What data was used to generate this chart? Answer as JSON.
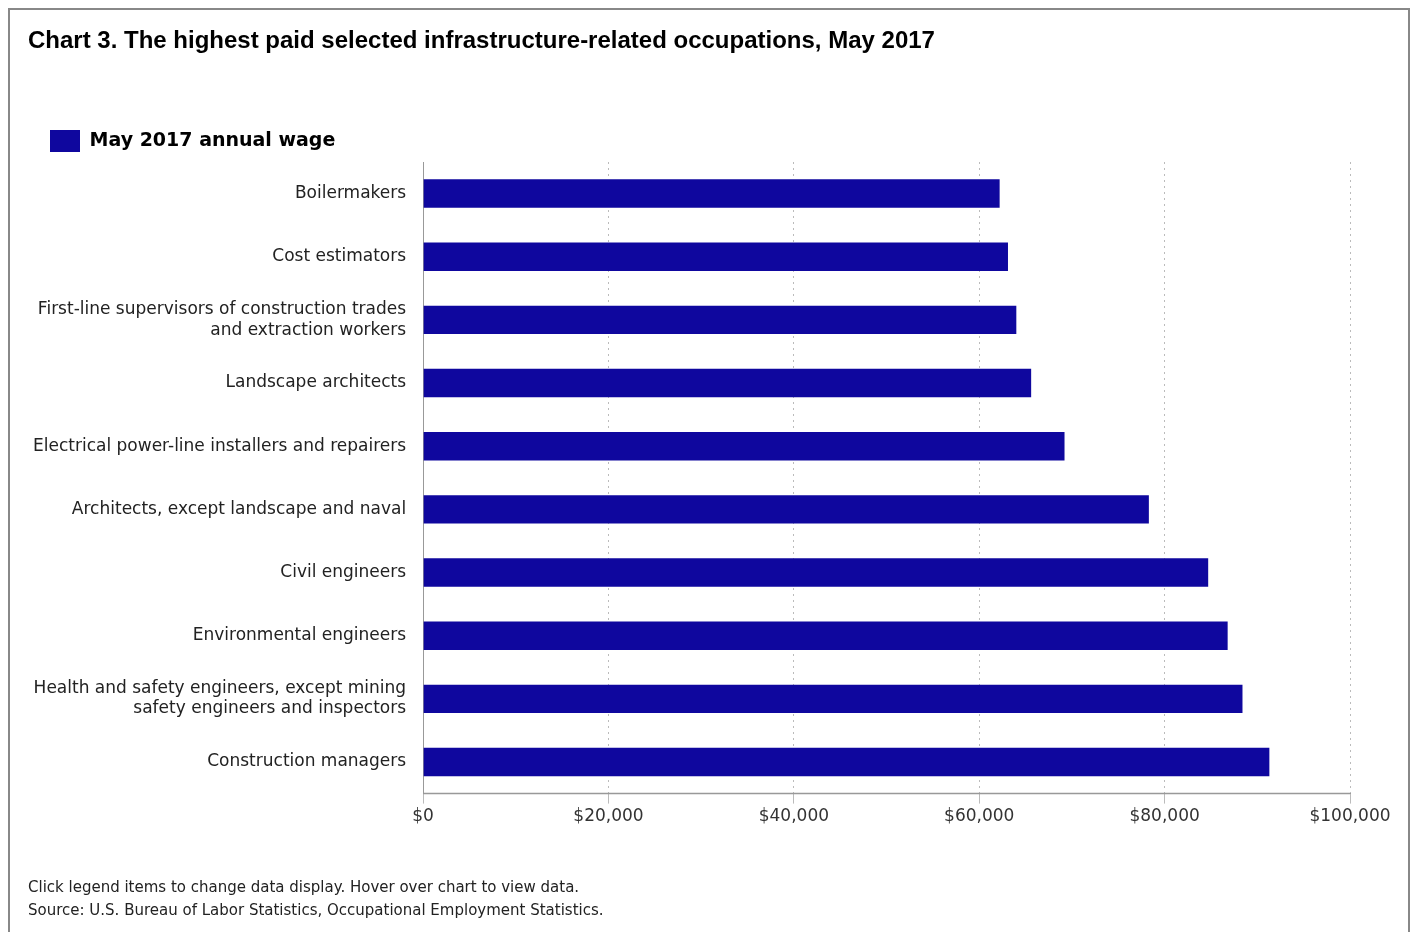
{
  "chart_data": {
    "type": "bar",
    "orientation": "horizontal",
    "title": "Chart 3. The highest paid selected infrastructure-related occupations, May 2017",
    "categories": [
      "Boilermakers",
      "Cost estimators",
      "First-line supervisors of construction trades and extraction workers",
      "Landscape architects",
      "Electrical power-line installers and repairers",
      "Architects, except landscape and naval",
      "Civil engineers",
      "Environmental engineers",
      "Health and safety engineers, except mining safety engineers and inspectors",
      "Construction managers"
    ],
    "series": [
      {
        "name": "May 2017 annual wage",
        "color": "#0f079e",
        "values": [
          62200,
          63100,
          64000,
          65600,
          69200,
          78300,
          84700,
          86800,
          88400,
          91300
        ]
      }
    ],
    "xlim": [
      0,
      100000
    ],
    "xticks": [
      {
        "value": 0,
        "label": "$0"
      },
      {
        "value": 20000,
        "label": "$20,000"
      },
      {
        "value": 40000,
        "label": "$40,000"
      },
      {
        "value": 60000,
        "label": "$60,000"
      },
      {
        "value": 80000,
        "label": "$80,000"
      },
      {
        "value": 100000,
        "label": "$100,000"
      }
    ],
    "grid": "x",
    "legend": "top left",
    "annotations": [
      "Click legend items to change data display. Hover over chart to view data.",
      "Source: U.S. Bureau of Labor Statistics, Occupational Employment Statistics."
    ]
  }
}
